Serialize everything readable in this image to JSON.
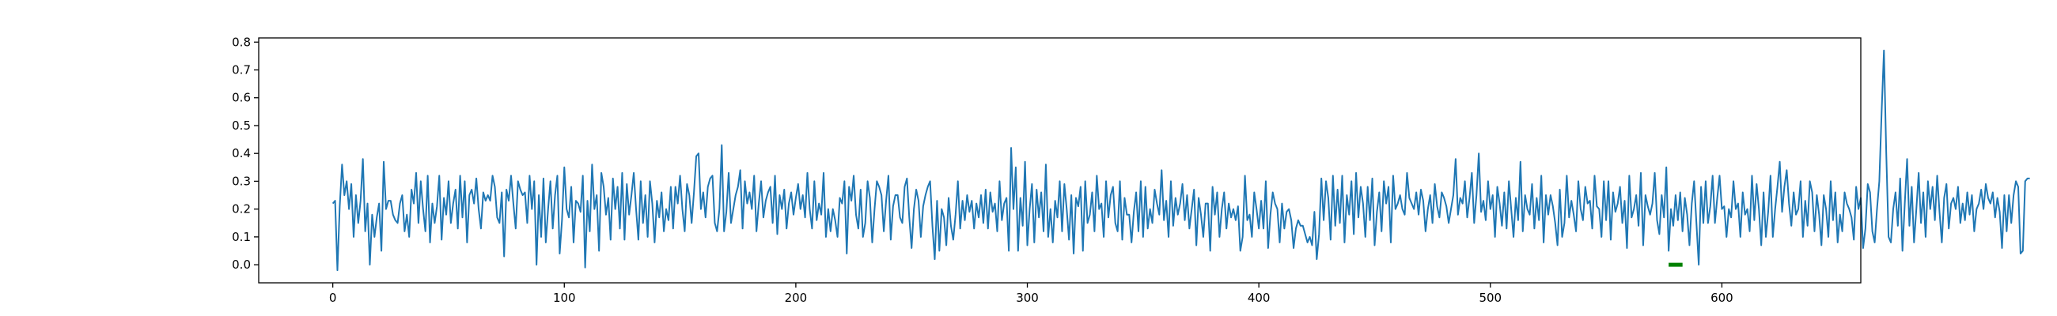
{
  "chart_data": {
    "type": "line",
    "title": "",
    "xlabel": "",
    "ylabel": "",
    "xlim": [
      -32,
      660
    ],
    "ylim": [
      -0.065,
      0.815
    ],
    "xticks": [
      0,
      100,
      200,
      300,
      400,
      500,
      600
    ],
    "yticks": [
      0.0,
      0.1,
      0.2,
      0.3,
      0.4,
      0.5,
      0.6,
      0.7,
      0.8
    ],
    "ytick_labels": [
      "0.0",
      "0.1",
      "0.2",
      "0.3",
      "0.4",
      "0.5",
      "0.6",
      "0.7",
      "0.8"
    ],
    "grid": false,
    "colors": {
      "line": "#1f77b4",
      "marker": "#008000"
    },
    "series": [
      {
        "x_start": 0,
        "values": [
          0.22,
          0.23,
          -0.02,
          0.21,
          0.36,
          0.25,
          0.3,
          0.2,
          0.29,
          0.1,
          0.25,
          0.15,
          0.23,
          0.38,
          0.12,
          0.22,
          0.0,
          0.18,
          0.1,
          0.17,
          0.22,
          0.05,
          0.37,
          0.2,
          0.23,
          0.23,
          0.18,
          0.16,
          0.15,
          0.22,
          0.25,
          0.12,
          0.18,
          0.1,
          0.27,
          0.22,
          0.33,
          0.15,
          0.3,
          0.2,
          0.12,
          0.32,
          0.08,
          0.22,
          0.15,
          0.21,
          0.32,
          0.09,
          0.24,
          0.18,
          0.3,
          0.15,
          0.22,
          0.27,
          0.13,
          0.32,
          0.17,
          0.3,
          0.08,
          0.25,
          0.27,
          0.22,
          0.31,
          0.2,
          0.13,
          0.26,
          0.23,
          0.25,
          0.23,
          0.32,
          0.28,
          0.17,
          0.15,
          0.26,
          0.03,
          0.27,
          0.23,
          0.32,
          0.22,
          0.13,
          0.3,
          0.27,
          0.25,
          0.26,
          0.15,
          0.32,
          0.2,
          0.3,
          0.0,
          0.25,
          0.1,
          0.31,
          0.08,
          0.2,
          0.3,
          0.13,
          0.25,
          0.32,
          0.04,
          0.16,
          0.35,
          0.2,
          0.17,
          0.28,
          0.08,
          0.23,
          0.22,
          0.19,
          0.32,
          -0.01,
          0.23,
          0.12,
          0.36,
          0.2,
          0.25,
          0.05,
          0.33,
          0.28,
          0.18,
          0.24,
          0.09,
          0.31,
          0.2,
          0.28,
          0.13,
          0.33,
          0.09,
          0.29,
          0.18,
          0.25,
          0.33,
          0.2,
          0.09,
          0.3,
          0.15,
          0.25,
          0.1,
          0.3,
          0.22,
          0.08,
          0.23,
          0.17,
          0.26,
          0.12,
          0.2,
          0.16,
          0.28,
          0.13,
          0.28,
          0.22,
          0.32,
          0.2,
          0.12,
          0.29,
          0.25,
          0.15,
          0.26,
          0.39,
          0.4,
          0.2,
          0.26,
          0.17,
          0.28,
          0.31,
          0.32,
          0.15,
          0.12,
          0.2,
          0.43,
          0.12,
          0.19,
          0.33,
          0.15,
          0.2,
          0.25,
          0.28,
          0.34,
          0.13,
          0.3,
          0.22,
          0.26,
          0.2,
          0.32,
          0.12,
          0.22,
          0.3,
          0.17,
          0.23,
          0.26,
          0.28,
          0.15,
          0.32,
          0.11,
          0.25,
          0.2,
          0.27,
          0.13,
          0.22,
          0.26,
          0.18,
          0.24,
          0.29,
          0.2,
          0.25,
          0.17,
          0.33,
          0.2,
          0.13,
          0.3,
          0.16,
          0.22,
          0.18,
          0.33,
          0.1,
          0.2,
          0.12,
          0.2,
          0.16,
          0.1,
          0.24,
          0.22,
          0.3,
          0.04,
          0.28,
          0.23,
          0.32,
          0.18,
          0.13,
          0.27,
          0.1,
          0.15,
          0.3,
          0.24,
          0.08,
          0.2,
          0.3,
          0.28,
          0.25,
          0.12,
          0.23,
          0.32,
          0.09,
          0.21,
          0.25,
          0.25,
          0.17,
          0.15,
          0.28,
          0.31,
          0.17,
          0.06,
          0.2,
          0.27,
          0.23,
          0.1,
          0.21,
          0.25,
          0.28,
          0.3,
          0.14,
          0.02,
          0.23,
          0.05,
          0.2,
          0.17,
          0.07,
          0.24,
          0.14,
          0.09,
          0.18,
          0.3,
          0.13,
          0.23,
          0.16,
          0.25,
          0.19,
          0.23,
          0.13,
          0.22,
          0.17,
          0.25,
          0.15,
          0.27,
          0.13,
          0.26,
          0.19,
          0.22,
          0.12,
          0.3,
          0.16,
          0.22,
          0.24,
          0.05,
          0.42,
          0.2,
          0.35,
          0.05,
          0.24,
          0.14,
          0.37,
          0.07,
          0.2,
          0.29,
          0.08,
          0.27,
          0.17,
          0.26,
          0.12,
          0.36,
          0.1,
          0.2,
          0.08,
          0.23,
          0.17,
          0.3,
          0.12,
          0.29,
          0.2,
          0.09,
          0.25,
          0.04,
          0.24,
          0.21,
          0.28,
          0.05,
          0.3,
          0.15,
          0.18,
          0.26,
          0.12,
          0.32,
          0.2,
          0.22,
          0.1,
          0.3,
          0.17,
          0.25,
          0.28,
          0.15,
          0.12,
          0.3,
          0.09,
          0.24,
          0.18,
          0.18,
          0.08,
          0.19,
          0.26,
          0.12,
          0.3,
          0.1,
          0.28,
          0.13,
          0.2,
          0.15,
          0.27,
          0.22,
          0.18,
          0.34,
          0.16,
          0.23,
          0.1,
          0.3,
          0.14,
          0.24,
          0.18,
          0.22,
          0.29,
          0.16,
          0.25,
          0.13,
          0.2,
          0.27,
          0.07,
          0.24,
          0.18,
          0.1,
          0.22,
          0.22,
          0.05,
          0.28,
          0.18,
          0.26,
          0.1,
          0.2,
          0.26,
          0.13,
          0.22,
          0.17,
          0.2,
          0.16,
          0.21,
          0.05,
          0.1,
          0.32,
          0.16,
          0.18,
          0.1,
          0.26,
          0.2,
          0.13,
          0.23,
          0.13,
          0.3,
          0.06,
          0.18,
          0.26,
          0.22,
          0.2,
          0.08,
          0.22,
          0.13,
          0.19,
          0.2,
          0.16,
          0.06,
          0.13,
          0.16,
          0.14,
          0.14,
          0.11,
          0.08,
          0.1,
          0.07,
          0.19,
          0.02,
          0.11,
          0.31,
          0.16,
          0.3,
          0.24,
          0.09,
          0.32,
          0.14,
          0.27,
          0.15,
          0.32,
          0.08,
          0.25,
          0.18,
          0.3,
          0.11,
          0.33,
          0.17,
          0.28,
          0.22,
          0.1,
          0.28,
          0.16,
          0.31,
          0.07,
          0.19,
          0.26,
          0.12,
          0.3,
          0.22,
          0.28,
          0.08,
          0.32,
          0.2,
          0.22,
          0.25,
          0.2,
          0.18,
          0.33,
          0.24,
          0.22,
          0.2,
          0.26,
          0.18,
          0.27,
          0.23,
          0.12,
          0.2,
          0.25,
          0.15,
          0.29,
          0.21,
          0.17,
          0.26,
          0.24,
          0.21,
          0.15,
          0.2,
          0.25,
          0.38,
          0.18,
          0.24,
          0.22,
          0.3,
          0.17,
          0.24,
          0.33,
          0.15,
          0.25,
          0.4,
          0.19,
          0.23,
          0.16,
          0.3,
          0.2,
          0.25,
          0.1,
          0.28,
          0.22,
          0.14,
          0.26,
          0.13,
          0.3,
          0.2,
          0.1,
          0.24,
          0.16,
          0.37,
          0.12,
          0.25,
          0.2,
          0.18,
          0.29,
          0.13,
          0.24,
          0.16,
          0.32,
          0.08,
          0.25,
          0.18,
          0.25,
          0.21,
          0.15,
          0.07,
          0.27,
          0.1,
          0.15,
          0.32,
          0.17,
          0.23,
          0.18,
          0.12,
          0.3,
          0.2,
          0.16,
          0.28,
          0.22,
          0.23,
          0.13,
          0.32,
          0.21,
          0.2,
          0.1,
          0.3,
          0.16,
          0.3,
          0.09,
          0.26,
          0.19,
          0.22,
          0.28,
          0.15,
          0.23,
          0.06,
          0.32,
          0.17,
          0.2,
          0.25,
          0.14,
          0.33,
          0.07,
          0.25,
          0.21,
          0.18,
          0.22,
          0.33,
          0.16,
          0.11,
          0.25,
          0.17,
          0.35,
          0.05,
          0.2,
          0.14,
          0.25,
          0.16,
          0.26,
          0.12,
          0.24,
          0.18,
          0.07,
          0.22,
          0.3,
          0.15,
          0.0,
          0.28,
          0.15,
          0.3,
          0.15,
          0.21,
          0.32,
          0.15,
          0.24,
          0.32,
          0.2,
          0.21,
          0.1,
          0.2,
          0.17,
          0.3,
          0.2,
          0.22,
          0.1,
          0.26,
          0.18,
          0.2,
          0.12,
          0.32,
          0.16,
          0.29,
          0.2,
          0.07,
          0.26,
          0.1,
          0.19,
          0.32,
          0.1,
          0.2,
          0.28,
          0.37,
          0.19,
          0.28,
          0.34,
          0.22,
          0.14,
          0.26,
          0.18,
          0.2,
          0.3,
          0.1,
          0.23,
          0.14,
          0.3,
          0.26,
          0.12,
          0.25,
          0.18,
          0.07,
          0.25,
          0.2,
          0.1,
          0.3,
          0.16,
          0.26,
          0.08,
          0.18,
          0.12,
          0.26,
          0.22,
          0.2,
          0.17,
          0.09,
          0.28,
          0.2,
          0.24,
          0.06,
          0.13,
          0.29,
          0.26,
          0.12,
          0.08,
          0.2,
          0.3,
          0.55,
          0.77,
          0.4,
          0.1,
          0.08,
          0.2,
          0.26,
          0.14,
          0.31,
          0.05,
          0.22,
          0.38,
          0.14,
          0.28,
          0.08,
          0.2,
          0.33,
          0.15,
          0.26,
          0.1,
          0.3,
          0.2,
          0.28,
          0.16,
          0.32,
          0.19,
          0.08,
          0.24,
          0.29,
          0.13,
          0.22,
          0.24,
          0.2,
          0.28,
          0.15,
          0.22,
          0.16,
          0.26,
          0.18,
          0.25,
          0.12,
          0.2,
          0.22,
          0.27,
          0.2,
          0.29,
          0.24,
          0.22,
          0.26,
          0.17,
          0.24,
          0.19,
          0.06,
          0.25,
          0.12,
          0.25,
          0.15,
          0.25,
          0.3,
          0.28,
          0.04,
          0.05,
          0.3,
          0.31,
          0.31
        ]
      }
    ],
    "markers": [
      {
        "x": [
          577,
          583
        ],
        "y": 0.0
      }
    ]
  }
}
